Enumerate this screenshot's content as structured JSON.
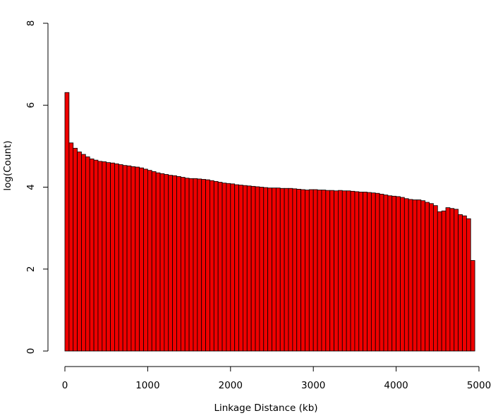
{
  "chart_data": {
    "type": "bar",
    "xlabel": "Linkage Distance (kb)",
    "ylabel": "log(Count)",
    "xlim": [
      0,
      5000
    ],
    "ylim": [
      0,
      8
    ],
    "x_ticks": [
      0,
      1000,
      2000,
      3000,
      4000,
      5000
    ],
    "y_ticks": [
      0,
      2,
      4,
      6,
      8
    ],
    "bin_width": 50,
    "bin_start": 0,
    "bar_color": "#ee0000",
    "border_color": "#000000",
    "grid": false,
    "values": [
      6.31,
      5.08,
      4.95,
      4.86,
      4.8,
      4.74,
      4.69,
      4.66,
      4.63,
      4.62,
      4.6,
      4.59,
      4.57,
      4.55,
      4.53,
      4.52,
      4.5,
      4.49,
      4.47,
      4.44,
      4.41,
      4.38,
      4.35,
      4.33,
      4.31,
      4.29,
      4.28,
      4.26,
      4.24,
      4.22,
      4.21,
      4.21,
      4.2,
      4.19,
      4.18,
      4.16,
      4.14,
      4.12,
      4.1,
      4.09,
      4.08,
      4.06,
      4.05,
      4.04,
      4.03,
      4.02,
      4.01,
      4.0,
      3.99,
      3.98,
      3.98,
      3.98,
      3.97,
      3.97,
      3.97,
      3.96,
      3.95,
      3.94,
      3.93,
      3.94,
      3.94,
      3.93,
      3.93,
      3.92,
      3.92,
      3.91,
      3.92,
      3.91,
      3.91,
      3.9,
      3.89,
      3.88,
      3.88,
      3.87,
      3.86,
      3.85,
      3.83,
      3.81,
      3.79,
      3.78,
      3.77,
      3.75,
      3.72,
      3.7,
      3.69,
      3.69,
      3.67,
      3.63,
      3.6,
      3.55,
      3.4,
      3.42,
      3.5,
      3.48,
      3.46,
      3.33,
      3.3,
      3.23,
      2.21
    ]
  }
}
